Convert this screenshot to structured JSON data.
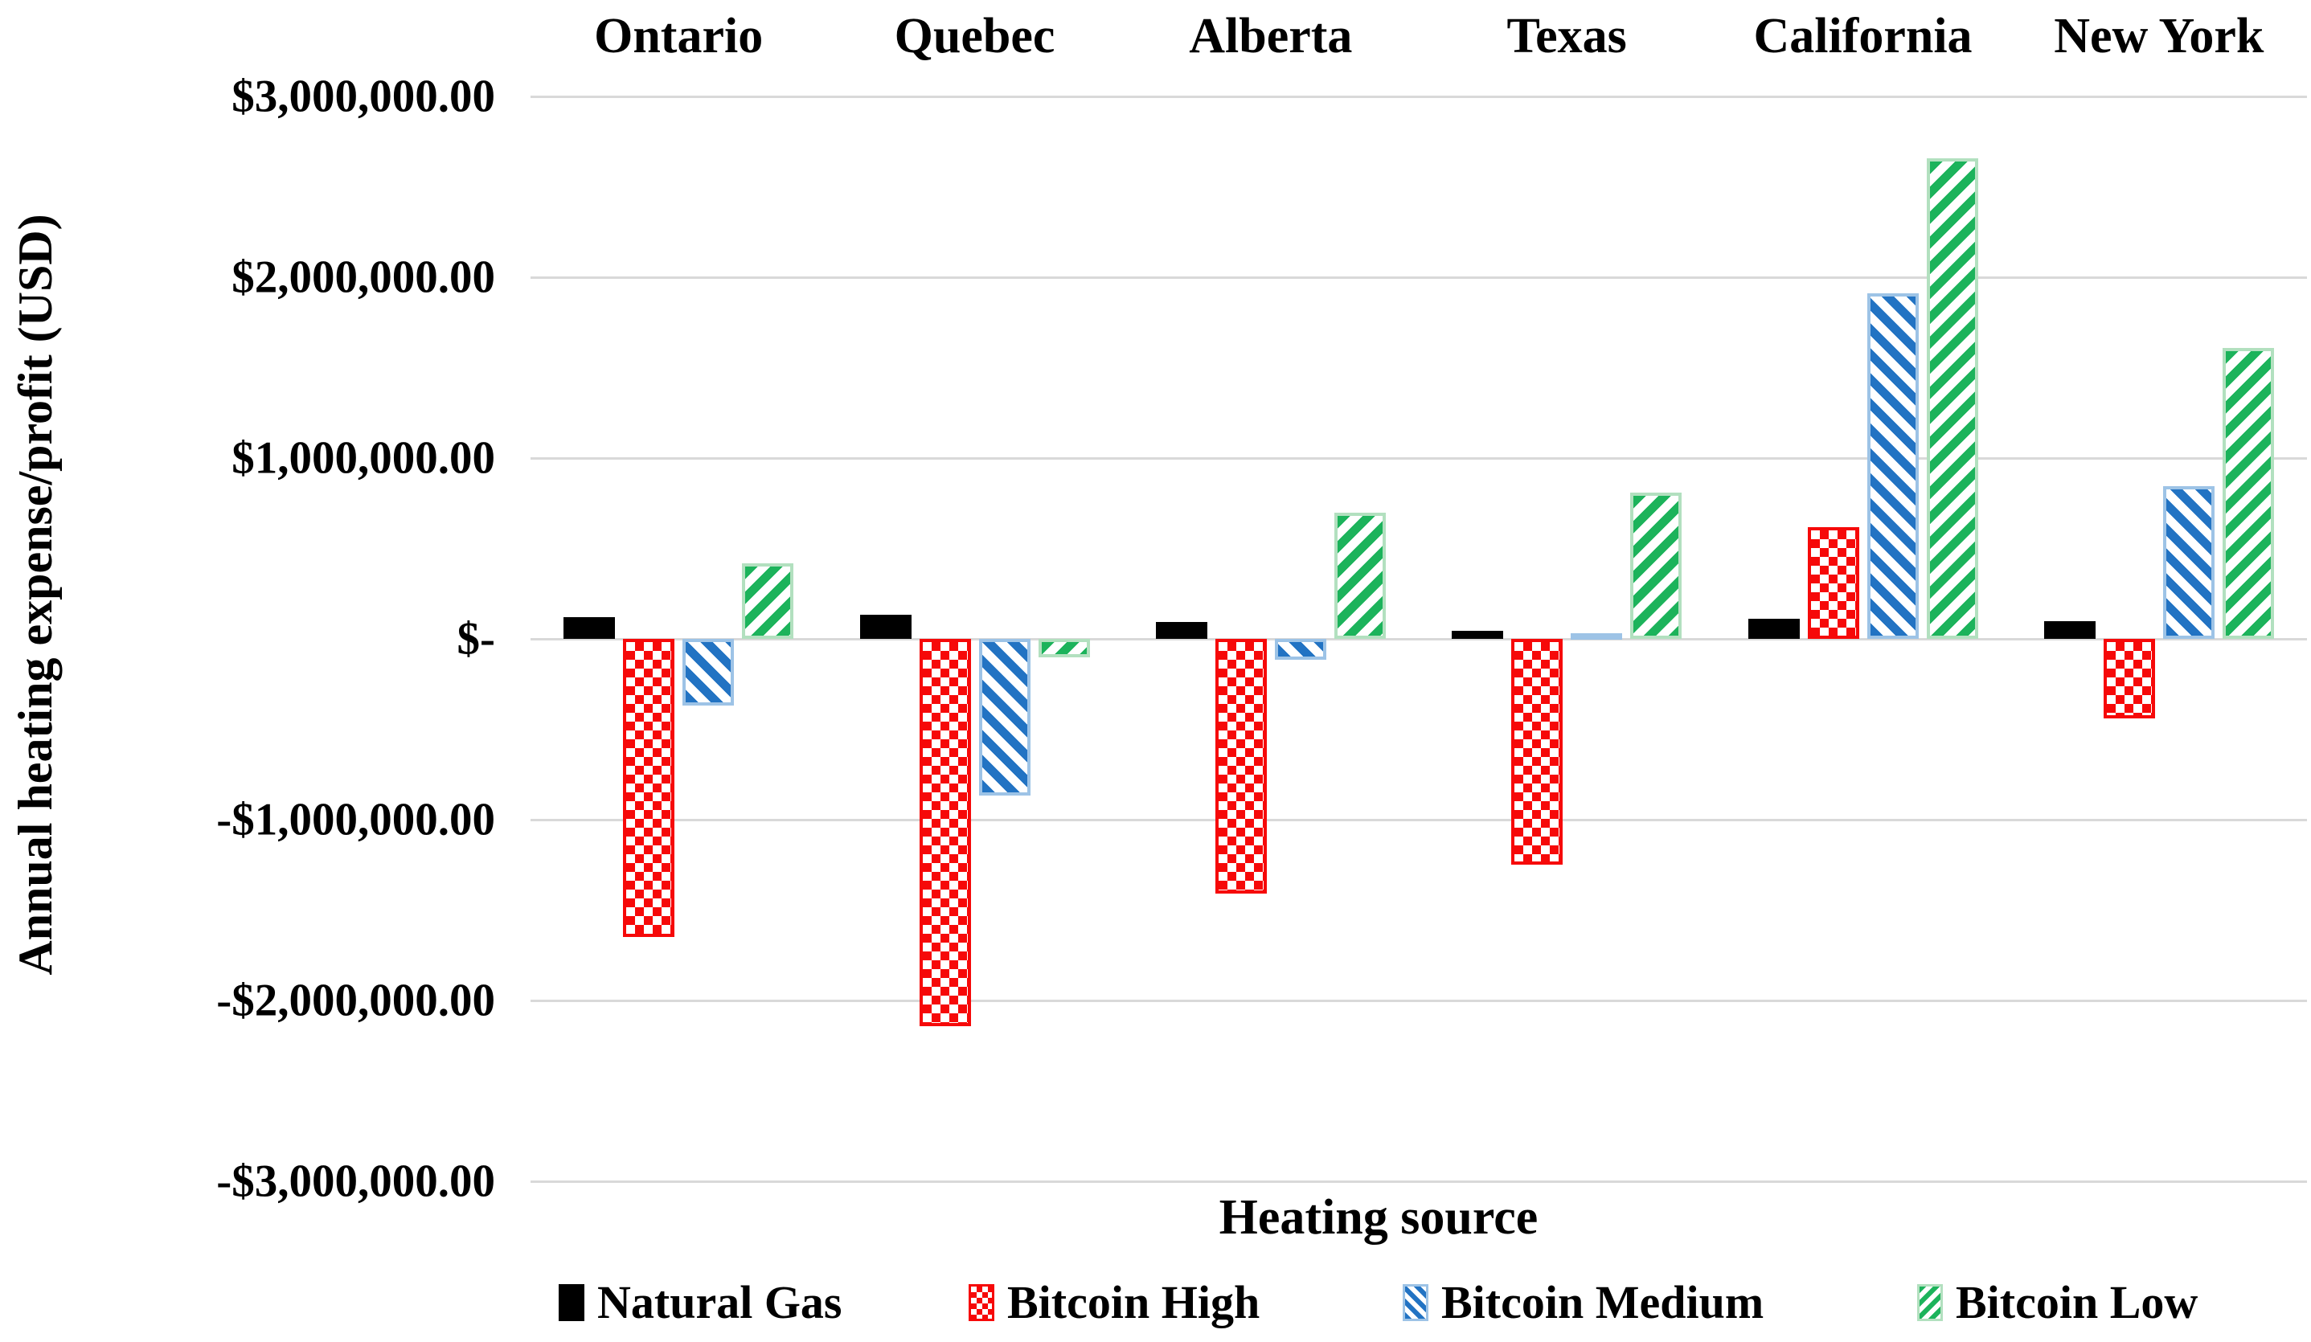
{
  "chart_data": {
    "type": "bar",
    "title": "",
    "xlabel": "Heating source",
    "ylabel": "Annual heating expense/profit (USD)",
    "categories": [
      "Ontario",
      "Quebec",
      "Alberta",
      "Texas",
      "California",
      "New York"
    ],
    "series": [
      {
        "name": "Natural Gas",
        "pattern": "solid",
        "color": "#000000",
        "values": [
          120000,
          135000,
          95000,
          45000,
          110000,
          100000
        ]
      },
      {
        "name": "Bitcoin High",
        "pattern": "checker",
        "color": "#f60909",
        "values": [
          -1650000,
          -2140000,
          -1410000,
          -1250000,
          620000,
          -440000
        ]
      },
      {
        "name": "Bitcoin Medium",
        "pattern": "hatch-back",
        "color": "#2273c3",
        "values": [
          -370000,
          -865000,
          -115000,
          30000,
          1910000,
          845000
        ]
      },
      {
        "name": "Bitcoin Low",
        "pattern": "hatch-fwd",
        "color": "#1cb35b",
        "values": [
          420000,
          -100000,
          700000,
          810000,
          2660000,
          1610000
        ]
      }
    ],
    "ylim": [
      -3000000,
      3000000
    ],
    "ytick_step": 1000000,
    "ytick_labels": [
      "$3,000,000.00",
      "$2,000,000.00",
      "$1,000,000.00",
      "$-",
      "-$1,000,000.00",
      "-$2,000,000.00",
      "-$3,000,000.00"
    ],
    "grid": true,
    "gridline_color": "#d9d9d9",
    "background": "#ffffff",
    "legend_position": "bottom",
    "category_label_position": "top"
  }
}
